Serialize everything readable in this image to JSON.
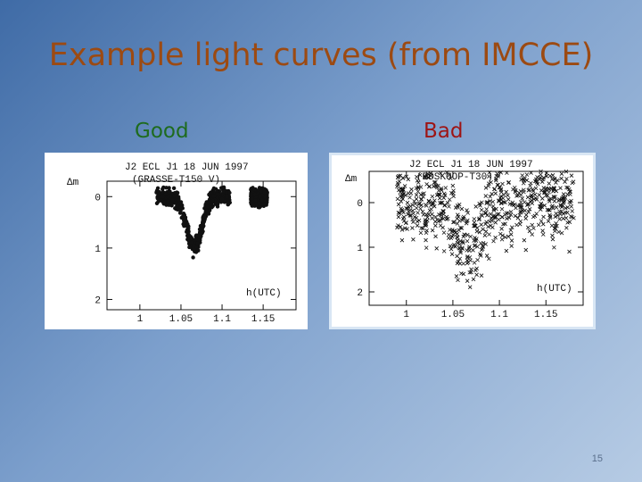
{
  "slide": {
    "title": "Example light curves (from IMCCE)",
    "page_number": "15",
    "title_color": "#9c4a12",
    "good_color": "#1e6b1e",
    "bad_color": "#9e1414"
  },
  "panels": [
    {
      "caption": "Good"
    },
    {
      "caption": "Bad"
    }
  ],
  "chart_data": [
    {
      "type": "scatter",
      "title": "J2 ECL J1 18 JUN 1997",
      "subtitle": "(GRASSE-T150 V)",
      "xlabel": "h(UTC)",
      "ylabel": "Δm",
      "xlim": [
        0.96,
        1.19
      ],
      "ylim": [
        -0.3,
        2.2
      ],
      "y_inverted": true,
      "x_ticks": [
        1,
        1.05,
        1.1,
        1.15
      ],
      "x_tick_labels": [
        "1",
        "1.05",
        "1.1",
        "1.15"
      ],
      "y_ticks": [
        0,
        1,
        2
      ],
      "y_tick_labels": [
        "0",
        "1",
        "2"
      ],
      "marker": "dot",
      "segments": [
        [
          1.02,
          1.11
        ],
        [
          1.135,
          1.155
        ]
      ],
      "dip": {
        "center": 1.066,
        "depth": 1.0,
        "width": 0.013
      },
      "scatter_amplitude": 0.08
    },
    {
      "type": "scatter",
      "title": "J2 ECL J1 18 JUN 1997",
      "subtitle": "(BOSKOOP-T30)",
      "xlabel": "h(UTC)",
      "ylabel": "Δm",
      "xlim": [
        0.96,
        1.19
      ],
      "ylim": [
        -0.7,
        2.3
      ],
      "y_inverted": true,
      "x_ticks": [
        1,
        1.05,
        1.1,
        1.15
      ],
      "x_tick_labels": [
        "1",
        "1.05",
        "1.1",
        "1.15"
      ],
      "y_ticks": [
        0,
        1,
        2
      ],
      "y_tick_labels": [
        "0",
        "1",
        "2"
      ],
      "marker": "x",
      "segments": [
        [
          0.99,
          1.18
        ]
      ],
      "dip": {
        "center": 1.066,
        "depth": 0.95,
        "width": 0.02
      },
      "scatter_amplitude": 0.45
    }
  ]
}
